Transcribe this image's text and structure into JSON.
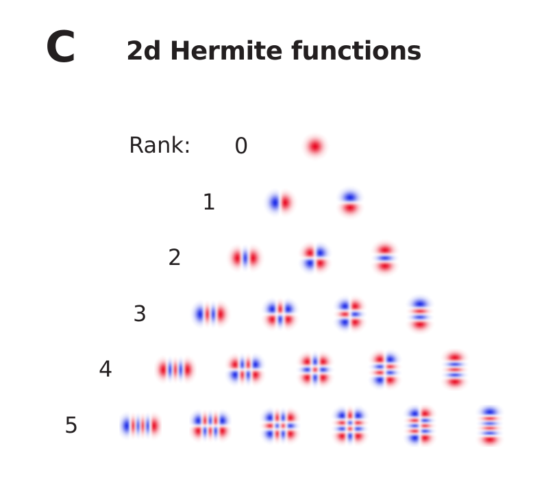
{
  "panel_letter": "C",
  "title": "2d Hermite functions",
  "rank_label": "Rank:",
  "colors": {
    "positive": "#e8001a",
    "negative": "#1020e6",
    "background": "#ffffff"
  },
  "ranks": [
    {
      "label": "0",
      "functions": [
        {
          "n": 0,
          "m": 0
        }
      ]
    },
    {
      "label": "1",
      "functions": [
        {
          "n": 1,
          "m": 0
        },
        {
          "n": 0,
          "m": 1
        }
      ]
    },
    {
      "label": "2",
      "functions": [
        {
          "n": 2,
          "m": 0
        },
        {
          "n": 1,
          "m": 1
        },
        {
          "n": 0,
          "m": 2
        }
      ]
    },
    {
      "label": "3",
      "functions": [
        {
          "n": 3,
          "m": 0
        },
        {
          "n": 2,
          "m": 1
        },
        {
          "n": 1,
          "m": 2
        },
        {
          "n": 0,
          "m": 3
        }
      ]
    },
    {
      "label": "4",
      "functions": [
        {
          "n": 4,
          "m": 0
        },
        {
          "n": 3,
          "m": 1
        },
        {
          "n": 2,
          "m": 2
        },
        {
          "n": 1,
          "m": 3
        },
        {
          "n": 0,
          "m": 4
        }
      ]
    },
    {
      "label": "5",
      "functions": [
        {
          "n": 5,
          "m": 0
        },
        {
          "n": 4,
          "m": 1
        },
        {
          "n": 3,
          "m": 2
        },
        {
          "n": 2,
          "m": 3
        },
        {
          "n": 1,
          "m": 4
        },
        {
          "n": 0,
          "m": 5
        }
      ]
    }
  ]
}
